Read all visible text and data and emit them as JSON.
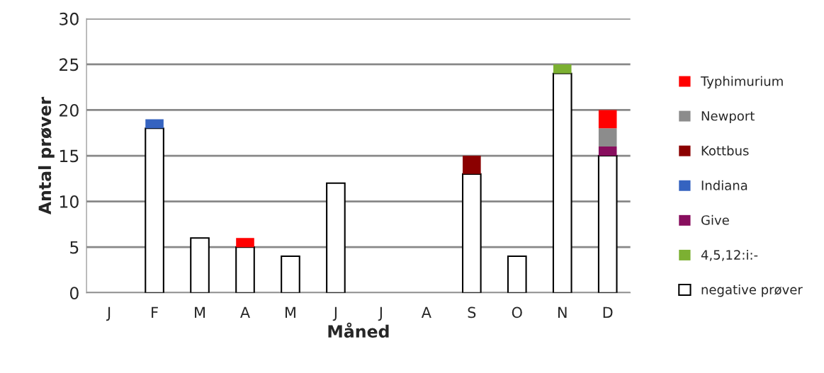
{
  "chart_data": {
    "type": "bar",
    "stacked": true,
    "xlabel": "Måned",
    "ylabel": "Antal prøver",
    "categories": [
      "J",
      "F",
      "M",
      "A",
      "M",
      "J",
      "J",
      "A",
      "S",
      "O",
      "N",
      "D"
    ],
    "series": [
      {
        "name": "negative prøver",
        "color": "#ffffff",
        "values": [
          0,
          18,
          6,
          5,
          4,
          12,
          0,
          0,
          13,
          4,
          24,
          15
        ]
      },
      {
        "name": "4,5,12:i:-",
        "color": "#7cb032",
        "values": [
          0,
          0,
          0,
          0,
          0,
          0,
          0,
          0,
          0,
          0,
          1,
          0
        ]
      },
      {
        "name": "Give",
        "color": "#880e5e",
        "values": [
          0,
          0,
          0,
          0,
          0,
          0,
          0,
          0,
          0,
          0,
          0,
          1
        ]
      },
      {
        "name": "Indiana",
        "color": "#3563c0",
        "values": [
          0,
          1,
          0,
          0,
          0,
          0,
          0,
          0,
          0,
          0,
          0,
          0
        ]
      },
      {
        "name": "Kottbus",
        "color": "#8b0000",
        "values": [
          0,
          0,
          0,
          0,
          0,
          0,
          0,
          0,
          2,
          0,
          0,
          0
        ]
      },
      {
        "name": "Newport",
        "color": "#8c8c8c",
        "values": [
          0,
          0,
          0,
          0,
          0,
          0,
          0,
          0,
          0,
          0,
          0,
          2
        ]
      },
      {
        "name": "Typhimurium",
        "color": "#ff0000",
        "values": [
          0,
          0,
          0,
          1,
          0,
          0,
          0,
          0,
          0,
          0,
          0,
          2
        ]
      }
    ],
    "ylim": [
      0,
      30
    ],
    "yticks": [
      0,
      5,
      10,
      15,
      20,
      25,
      30
    ],
    "grid": "y",
    "legend": "right"
  }
}
